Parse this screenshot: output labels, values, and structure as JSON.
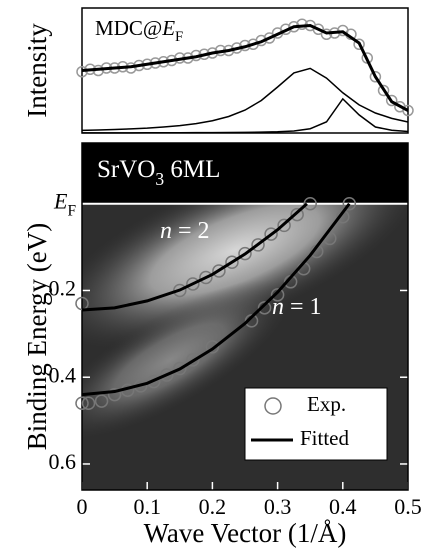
{
  "chart_data": [
    {
      "type": "line",
      "ylabel": "Intensity",
      "annotation": "MDC@EF",
      "xlim": [
        0,
        0.5
      ],
      "ylim": [
        0,
        1
      ],
      "series": [
        {
          "color": "#999999",
          "marker": "circle",
          "x": [
            0,
            0.0125,
            0.025,
            0.0375,
            0.05,
            0.0625,
            0.075,
            0.0875,
            0.1,
            0.1125,
            0.125,
            0.1375,
            0.15,
            0.1625,
            0.175,
            0.1875,
            0.2,
            0.2125,
            0.225,
            0.2375,
            0.25,
            0.2625,
            0.275,
            0.2875,
            0.3,
            0.3125,
            0.325,
            0.3375,
            0.35,
            0.3625,
            0.375,
            0.3875,
            0.4,
            0.4125,
            0.425,
            0.4375,
            0.45,
            0.4625,
            0.475,
            0.4875,
            0.5
          ],
          "values": [
            0.49,
            0.51,
            0.5,
            0.52,
            0.52,
            0.53,
            0.52,
            0.54,
            0.55,
            0.56,
            0.57,
            0.58,
            0.6,
            0.6,
            0.62,
            0.63,
            0.64,
            0.66,
            0.66,
            0.68,
            0.7,
            0.71,
            0.74,
            0.76,
            0.8,
            0.83,
            0.85,
            0.87,
            0.86,
            0.83,
            0.79,
            0.8,
            0.82,
            0.79,
            0.71,
            0.6,
            0.45,
            0.34,
            0.26,
            0.21,
            0.18
          ]
        },
        {
          "color": "#000000",
          "width": 3,
          "x": [
            0,
            0.025,
            0.05,
            0.075,
            0.1,
            0.125,
            0.15,
            0.175,
            0.2,
            0.225,
            0.25,
            0.275,
            0.3,
            0.325,
            0.35,
            0.375,
            0.4,
            0.425,
            0.45,
            0.475,
            0.5
          ],
          "values": [
            0.5,
            0.51,
            0.52,
            0.53,
            0.55,
            0.57,
            0.59,
            0.61,
            0.64,
            0.66,
            0.69,
            0.73,
            0.79,
            0.85,
            0.86,
            0.8,
            0.81,
            0.72,
            0.45,
            0.25,
            0.18
          ]
        },
        {
          "color": "#000000",
          "width": 1.5,
          "x": [
            0,
            0.025,
            0.05,
            0.075,
            0.1,
            0.125,
            0.15,
            0.175,
            0.2,
            0.225,
            0.25,
            0.275,
            0.3,
            0.325,
            0.35,
            0.375,
            0.4,
            0.425,
            0.45,
            0.475,
            0.5
          ],
          "values": [
            0.021,
            0.024,
            0.028,
            0.033,
            0.039,
            0.048,
            0.059,
            0.075,
            0.098,
            0.132,
            0.183,
            0.26,
            0.368,
            0.481,
            0.517,
            0.439,
            0.322,
            0.225,
            0.16,
            0.117,
            0.088
          ]
        },
        {
          "color": "#000000",
          "width": 1.5,
          "x": [
            0,
            0.025,
            0.05,
            0.075,
            0.1,
            0.125,
            0.15,
            0.175,
            0.2,
            0.225,
            0.25,
            0.275,
            0.3,
            0.325,
            0.35,
            0.375,
            0.4,
            0.425,
            0.45,
            0.475,
            0.5
          ],
          "values": [
            0.001,
            0.001,
            0.001,
            0.001,
            0.002,
            0.002,
            0.002,
            0.003,
            0.003,
            0.004,
            0.005,
            0.007,
            0.01,
            0.016,
            0.034,
            0.089,
            0.273,
            0.145,
            0.048,
            0.022,
            0.012
          ]
        }
      ]
    },
    {
      "type": "line",
      "title": "SrVO3 6ML",
      "xlabel": "Wave Vector (1/Å)",
      "ylabel": "Binding Energy (eV)",
      "annotations": [
        "n = 2",
        "n = 1"
      ],
      "xlim": [
        0,
        0.5
      ],
      "xticks": [
        0,
        0.1,
        0.2,
        0.3,
        0.4,
        0.5
      ],
      "ylim": [
        -0.14,
        0.66
      ],
      "y_inverted": true,
      "yticks": [
        {
          "value": 0,
          "label": "EF"
        },
        0.2,
        0.4,
        0.6
      ],
      "legend": "lower right",
      "series": [
        {
          "name": "Exp.",
          "color": "#777777",
          "marker": "circle",
          "x": [
            0,
            0.15,
            0.17,
            0.19,
            0.21,
            0.23,
            0.25,
            0.27,
            0.29,
            0.31,
            0.33,
            0.35,
            0,
            0.01,
            0.03,
            0.05,
            0.07,
            0.09,
            0.11,
            0.13,
            0.15,
            0.17,
            0.2,
            0.26,
            0.28,
            0.3,
            0.32,
            0.34,
            0.36,
            0.38,
            0.4,
            0.41
          ],
          "values": [
            0.23,
            0.2,
            0.185,
            0.17,
            0.155,
            0.135,
            0.115,
            0.095,
            0.07,
            0.05,
            0.025,
            0,
            0.46,
            0.46,
            0.455,
            0.44,
            0.43,
            0.42,
            0.41,
            0.395,
            0.38,
            0.36,
            0.33,
            0.27,
            0.24,
            0.21,
            0.18,
            0.15,
            0.11,
            0.08,
            0.03,
            0
          ]
        },
        {
          "name": "Fitted",
          "color": "#000000",
          "x": [
            0,
            0.05,
            0.1,
            0.15,
            0.2,
            0.25,
            0.3,
            0.345,
            null,
            0,
            0.05,
            0.1,
            0.15,
            0.2,
            0.25,
            0.3,
            0.35,
            0.41
          ],
          "values": [
            0.245,
            0.24,
            0.224,
            0.199,
            0.163,
            0.116,
            0.06,
            0,
            null,
            0.44,
            0.433,
            0.414,
            0.381,
            0.335,
            0.276,
            0.204,
            0.119,
            0
          ]
        }
      ]
    }
  ]
}
